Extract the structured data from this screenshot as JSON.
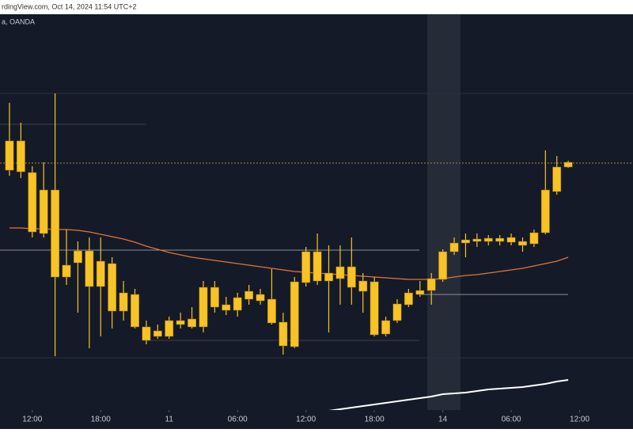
{
  "header": {
    "source": "rdingView.com, Oct 14, 2024 11:54 UTC+2",
    "symbol": "a, OANDA"
  },
  "chart_data": {
    "type": "candlestick",
    "categories": [
      null,
      null,
      null,
      null,
      null,
      null,
      null,
      null,
      null,
      null,
      null,
      null,
      null,
      null,
      null,
      null,
      null,
      null,
      null,
      null,
      null,
      null,
      null,
      null,
      null,
      null,
      null,
      null,
      null,
      null,
      null,
      null,
      null,
      null,
      null,
      null,
      null,
      null,
      null,
      null,
      null,
      null,
      null,
      null,
      null,
      null,
      null,
      null,
      null,
      null
    ],
    "color": "#f7c325",
    "open": [
      303,
      340,
      300,
      278,
      278,
      168,
      186,
      201,
      156,
      185,
      125,
      146,
      105,
      93,
      93,
      108,
      115,
      105,
      155,
      126,
      126,
      140,
      146,
      140,
      111,
      80,
      161,
      200,
      163,
      166,
      181,
      163,
      162,
      96,
      113,
      133,
      146,
      151,
      165,
      200,
      211,
      213,
      213,
      217,
      212,
      213,
      210,
      224,
      276,
      307
    ],
    "high": [
      388,
      363,
      308,
      313,
      400,
      228,
      213,
      218,
      218,
      193,
      163,
      153,
      113,
      108,
      118,
      123,
      130,
      163,
      163,
      143,
      148,
      158,
      153,
      178,
      123,
      168,
      206,
      223,
      208,
      208,
      218,
      173,
      168,
      118,
      140,
      153,
      163,
      173,
      203,
      218,
      223,
      223,
      221,
      221,
      223,
      218,
      228,
      328,
      321,
      315
    ],
    "low": [
      296,
      293,
      218,
      218,
      68,
      158,
      123,
      78,
      93,
      103,
      113,
      103,
      83,
      90,
      90,
      103,
      103,
      98,
      123,
      120,
      118,
      133,
      133,
      108,
      70,
      78,
      156,
      158,
      98,
      133,
      133,
      123,
      93,
      93,
      110,
      130,
      143,
      133,
      162,
      196,
      193,
      206,
      208,
      208,
      208,
      200,
      206,
      222,
      272,
      306
    ],
    "close": [
      340,
      301,
      225,
      223,
      168,
      183,
      201,
      156,
      188,
      125,
      148,
      105,
      88,
      100,
      113,
      113,
      105,
      155,
      130,
      133,
      142,
      150,
      138,
      110,
      81,
      162,
      200,
      163,
      173,
      181,
      155,
      150,
      95,
      113,
      134,
      148,
      151,
      166,
      200,
      211,
      215,
      216,
      217,
      213,
      218,
      208,
      224,
      278,
      307,
      313
    ],
    "lines": [
      {
        "color": "#e0743a",
        "values": [
          230,
          230,
          229,
          229,
          228,
          228,
          227,
          225,
          222,
          219,
          216,
          212,
          207,
          203,
          199,
          196,
          193,
          191,
          189,
          187,
          185,
          183,
          181,
          179,
          177,
          175,
          174,
          173,
          172,
          171,
          170,
          169,
          168,
          167,
          166,
          165,
          165,
          165,
          166,
          168,
          170,
          171,
          173,
          175,
          177,
          179,
          182,
          185,
          188,
          193
        ]
      },
      {
        "color": "#ffffff",
        "values": [
          null,
          null,
          null,
          null,
          null,
          null,
          null,
          null,
          null,
          null,
          null,
          null,
          null,
          null,
          null,
          null,
          null,
          null,
          null,
          null,
          null,
          null,
          null,
          null,
          null,
          null,
          -5,
          -3,
          -1,
          1,
          3,
          5,
          7,
          9,
          11,
          13,
          15,
          17,
          20,
          21,
          22,
          24,
          26,
          27,
          28,
          29,
          31,
          33,
          36,
          38
        ]
      }
    ],
    "xlim": [
      -0.83,
      54.68
    ],
    "ylim": [
      0,
      500
    ],
    "xticks": [
      {
        "value": 2,
        "label": "12:00"
      },
      {
        "value": 8,
        "label": "18:00"
      },
      {
        "value": 14,
        "label": "11"
      },
      {
        "value": 20,
        "label": "06:00"
      },
      {
        "value": 26,
        "label": "12:00"
      },
      {
        "value": 32,
        "label": "18:00"
      },
      {
        "value": 38,
        "label": "14"
      },
      {
        "value": 44,
        "label": "06:00"
      },
      {
        "value": 50,
        "label": "12:00"
      }
    ]
  }
}
